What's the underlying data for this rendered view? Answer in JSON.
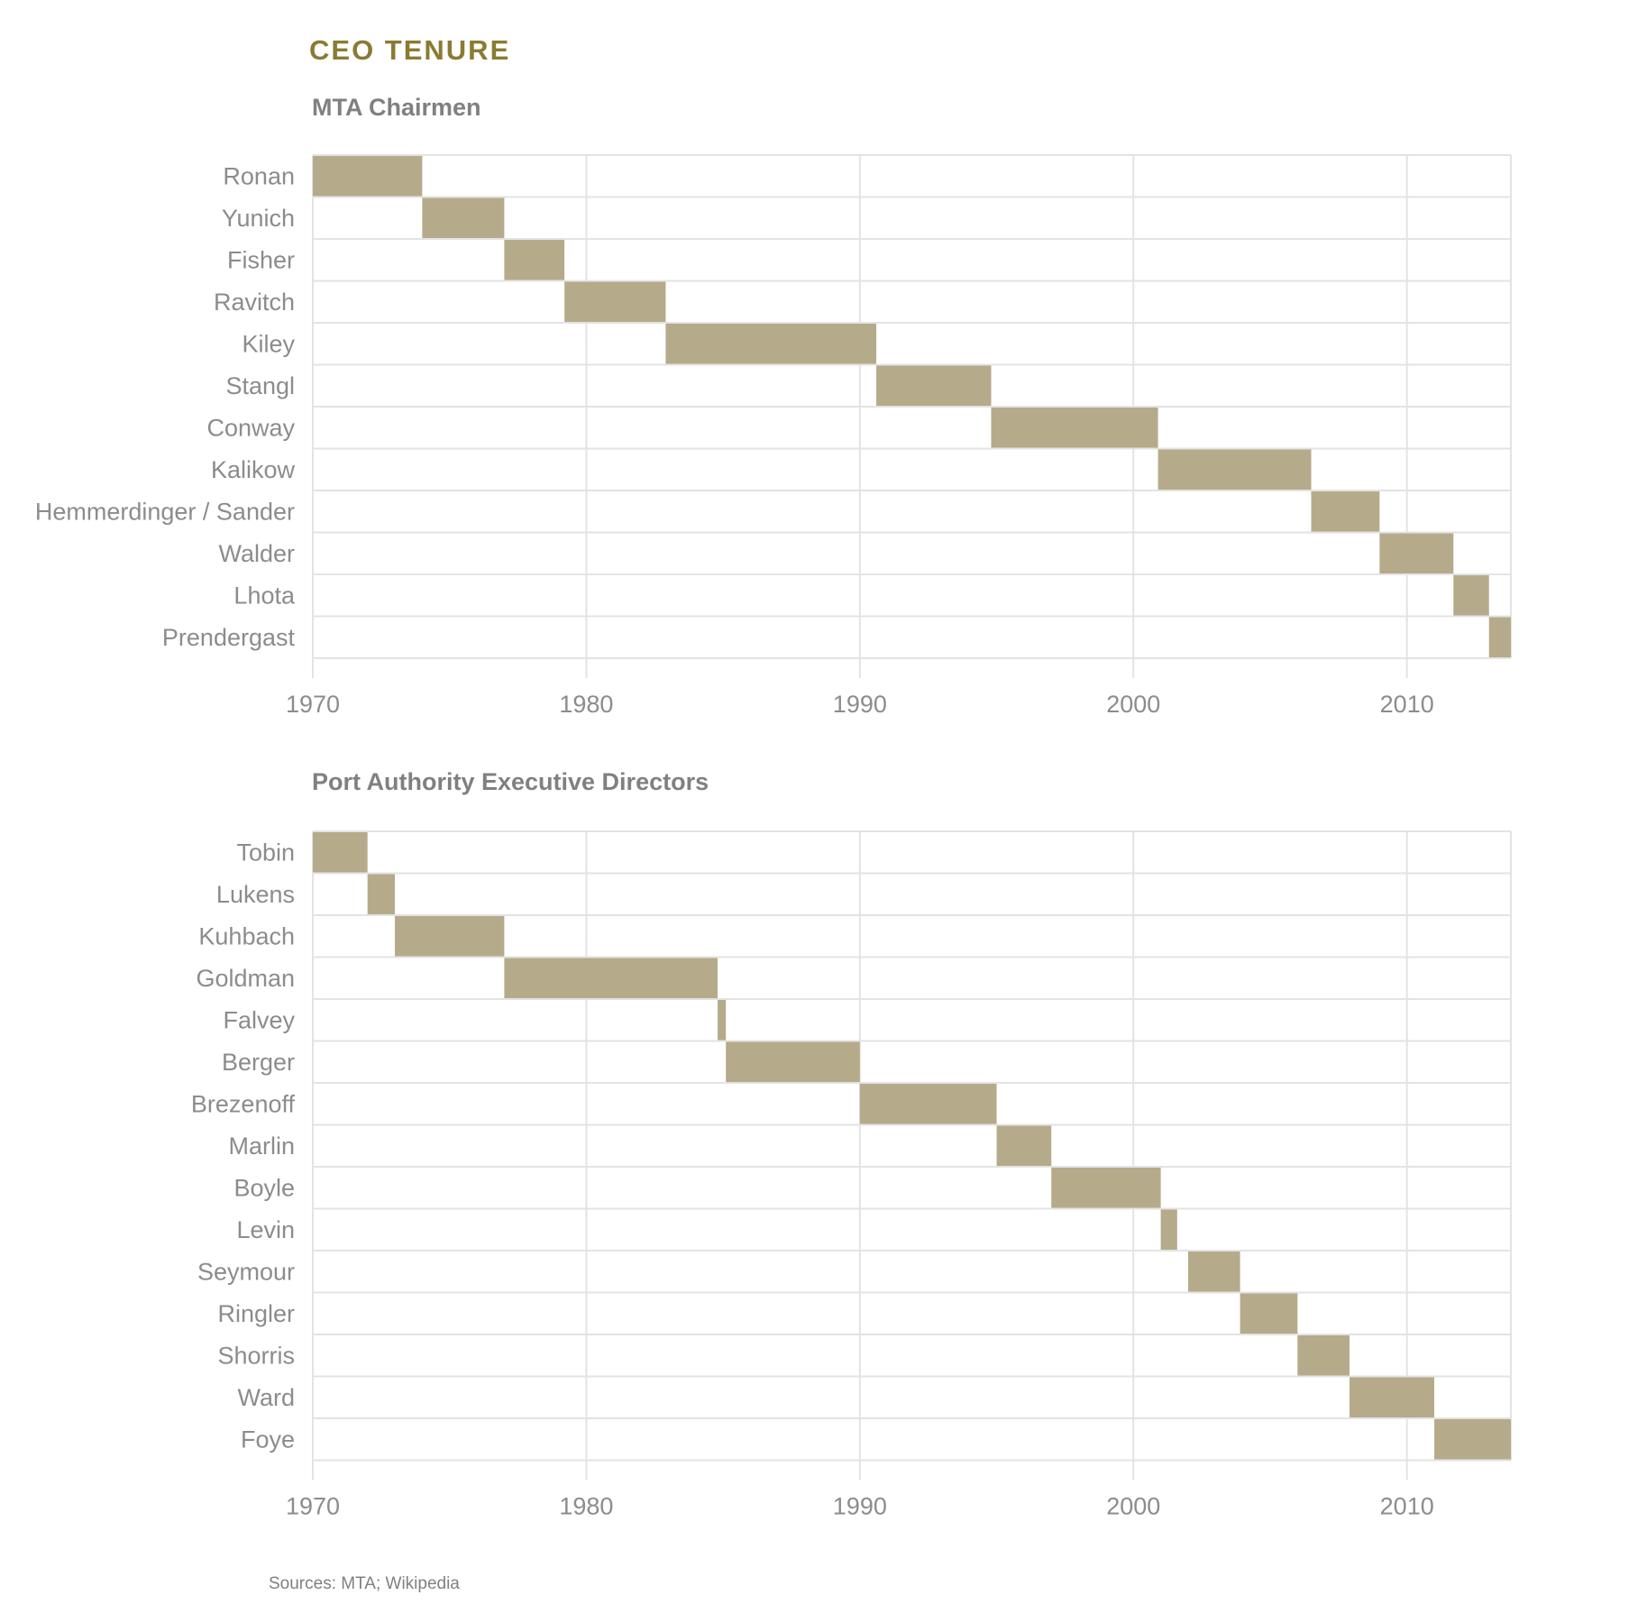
{
  "header": {
    "kicker": "CEO TENURE",
    "kicker_color": "#8a7b33",
    "source": "Sources: MTA; Wikipedia"
  },
  "style": {
    "bar_color": "#b5ab8a",
    "grid_color": "#e3e3e3",
    "label_color": "#8c8c8c"
  },
  "chart_data": [
    {
      "type": "bar",
      "orientation": "horizontal-range",
      "title": "MTA Chairmen",
      "xlim": [
        1970,
        2013.8
      ],
      "xticks": [
        1970,
        1980,
        1990,
        2000,
        2010
      ],
      "grid": true,
      "categories": [
        "Ronan",
        "Yunich",
        "Fisher",
        "Ravitch",
        "Kiley",
        "Stangl",
        "Conway",
        "Kalikow",
        "Hemmerdinger / Sander",
        "Walder",
        "Lhota",
        "Prendergast"
      ],
      "start": [
        1970.0,
        1974.0,
        1977.0,
        1979.2,
        1982.9,
        1990.6,
        1994.8,
        2000.9,
        2006.5,
        2009.0,
        2011.7,
        2013.0
      ],
      "end": [
        1974.0,
        1977.0,
        1979.2,
        1982.9,
        1990.6,
        1994.8,
        2000.9,
        2006.5,
        2009.0,
        2011.7,
        2013.0,
        2013.8
      ]
    },
    {
      "type": "bar",
      "orientation": "horizontal-range",
      "title": "Port Authority Executive Directors",
      "xlim": [
        1970,
        2013.8
      ],
      "xticks": [
        1970,
        1980,
        1990,
        2000,
        2010
      ],
      "grid": true,
      "categories": [
        "Tobin",
        "Lukens",
        "Kuhbach",
        "Goldman",
        "Falvey",
        "Berger",
        "Brezenoff",
        "Marlin",
        "Boyle",
        "Levin",
        "Seymour",
        "Ringler",
        "Shorris",
        "Ward",
        "Foye"
      ],
      "start": [
        1970.0,
        1972.0,
        1973.0,
        1977.0,
        1984.8,
        1985.1,
        1990.0,
        1995.0,
        1997.0,
        2001.0,
        2002.0,
        2003.9,
        2006.0,
        2007.9,
        2011.0
      ],
      "end": [
        1972.0,
        1973.0,
        1977.0,
        1984.8,
        1985.1,
        1990.0,
        1995.0,
        1997.0,
        2001.0,
        2001.6,
        2003.9,
        2006.0,
        2007.9,
        2011.0,
        2013.8
      ]
    }
  ]
}
